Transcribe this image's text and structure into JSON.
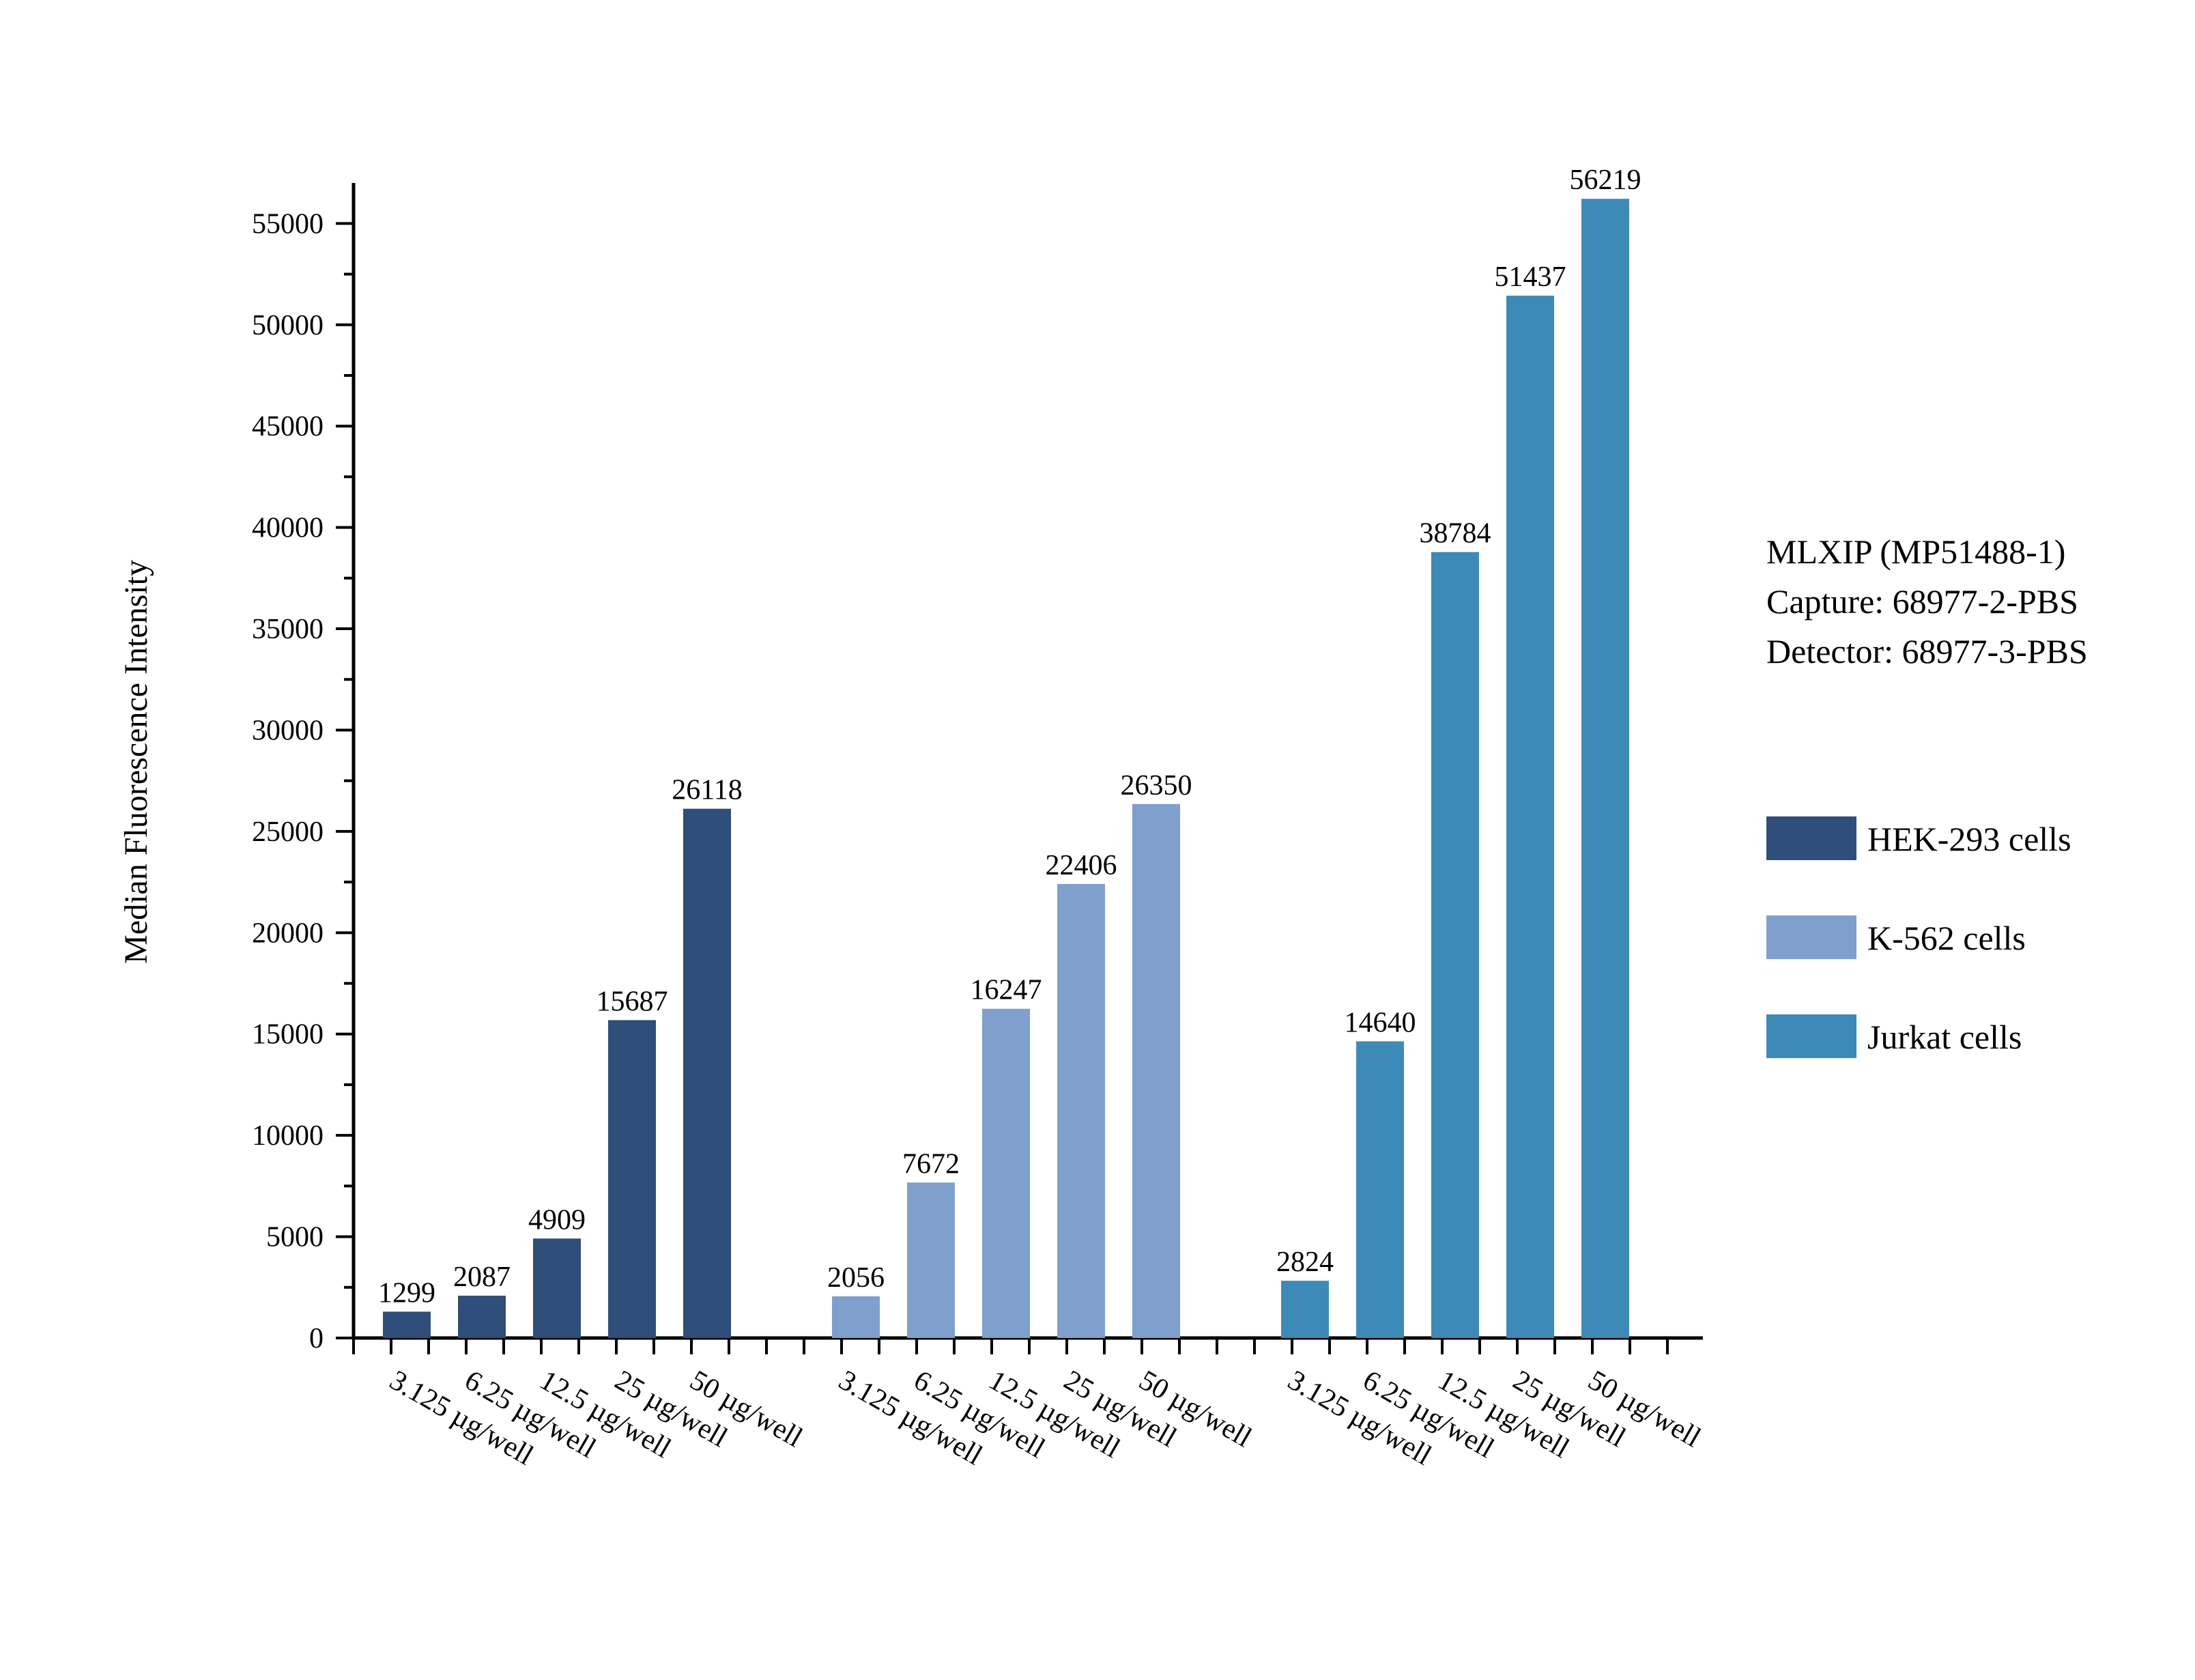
{
  "chart_data": {
    "type": "bar",
    "ylabel": "Median Fluorescence Intensity",
    "xlabel": "",
    "ylim": [
      0,
      57000
    ],
    "y_ticks": [
      0,
      5000,
      10000,
      15000,
      20000,
      25000,
      30000,
      35000,
      40000,
      45000,
      50000,
      55000
    ],
    "categories": [
      "3.125 µg/well",
      "6.25 µg/well",
      "12.5 µg/well",
      "25 µg/well",
      "50 µg/well"
    ],
    "series": [
      {
        "name": "HEK-293 cells",
        "color": "#2f4e79",
        "values": [
          1299,
          2087,
          4909,
          15687,
          26118
        ]
      },
      {
        "name": "K-562 cells",
        "color": "#7f9fcc",
        "values": [
          2056,
          7672,
          16247,
          22406,
          26350
        ]
      },
      {
        "name": "Jurkat cells",
        "color": "#3d8ab8",
        "values": [
          2824,
          14640,
          38784,
          51437,
          56219
        ]
      }
    ],
    "annotation": [
      "MLXIP (MP51488-1)",
      "Capture: 68977-2-PBS",
      "Detector: 68977-3-PBS"
    ],
    "legend_position": "right",
    "grid": false
  }
}
